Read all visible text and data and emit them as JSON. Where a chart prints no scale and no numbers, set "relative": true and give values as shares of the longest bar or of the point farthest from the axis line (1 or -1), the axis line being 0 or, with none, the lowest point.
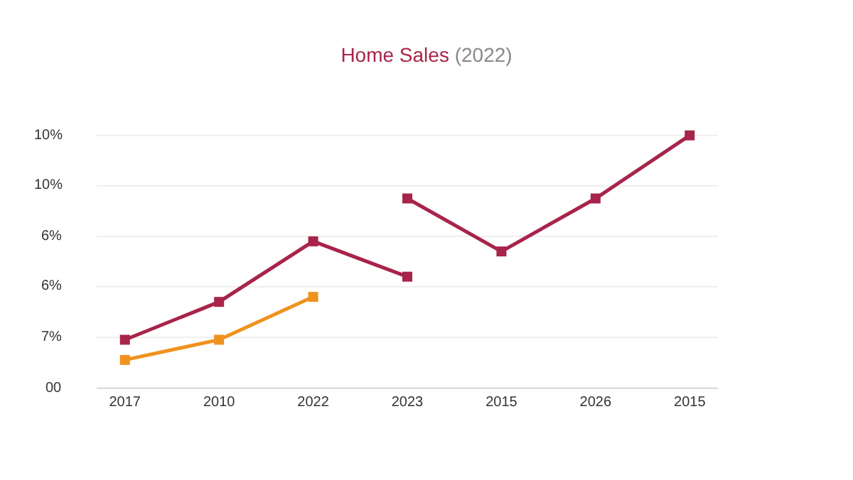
{
  "chart_data": {
    "type": "line",
    "title": "Home Sales",
    "subtitle": "(2022)",
    "categories": [
      "2017",
      "2010",
      "2022",
      "2023",
      "2015",
      "2026",
      "2015"
    ],
    "relative": true,
    "series": [
      {
        "color": "#a8244a",
        "values": [
          0.19,
          0.34,
          0.58,
          0.44,
          null,
          null,
          null
        ]
      },
      {
        "color": "#a8244a",
        "values": [
          null,
          null,
          null,
          0.75,
          0.54,
          0.75,
          1
        ]
      },
      {
        "color": "#f0921e",
        "values": [
          0.11,
          0.19,
          0.36,
          null,
          null,
          null,
          null
        ]
      }
    ],
    "annotations": [
      "10%",
      "10%",
      "6%",
      "6%",
      "7%",
      "00"
    ],
    "grid": "y",
    "marker": "square",
    "line_style": "solid"
  }
}
